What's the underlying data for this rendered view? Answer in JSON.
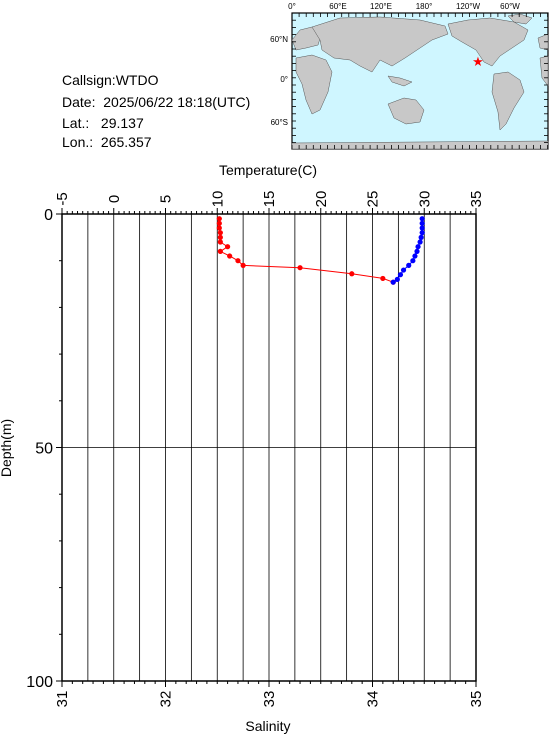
{
  "station": {
    "callsign_line": "Callsign:WTDO",
    "date_line": "Date:  2025/06/22 18:18(UTC)",
    "lat_line": "Lat.:   29.137",
    "lon_line": "Lon.:  265.357"
  },
  "map": {
    "lon_labels": [
      "0°",
      "60°E",
      "120°E",
      "180°",
      "120°W",
      "60°W"
    ],
    "lat_labels": [
      "60°N",
      "0°",
      "60°S"
    ],
    "marker": "red-star",
    "ocean_color": "#cff6ff",
    "land_color": "#c8c8c8"
  },
  "chart_data": {
    "type": "line",
    "xlabel_top": "Temperature(C)",
    "xlabel_bottom": "Salinity",
    "ylabel": "Depth(m)",
    "temperature_range": [
      -5,
      35
    ],
    "salinity_range": [
      31,
      35
    ],
    "depth_range": [
      0,
      100
    ],
    "temperature_ticks": [
      "-5",
      "0",
      "5",
      "10",
      "15",
      "20",
      "25",
      "30",
      "35"
    ],
    "salinity_ticks": [
      "31",
      "32",
      "33",
      "34",
      "35"
    ],
    "depth_ticks": [
      "0",
      "50",
      "100"
    ],
    "grid": true,
    "series": [
      {
        "color": "#ff0000",
        "axis": "temperature",
        "points": [
          [
            10.2,
            1.0
          ],
          [
            10.2,
            2.0
          ],
          [
            10.2,
            3.0
          ],
          [
            10.3,
            4.0
          ],
          [
            10.3,
            5.0
          ],
          [
            10.3,
            6.0
          ],
          [
            11.0,
            7.0
          ],
          [
            10.3,
            8.0
          ],
          [
            11.2,
            9.0
          ],
          [
            12.0,
            10.0
          ],
          [
            12.5,
            11.0
          ],
          [
            18.0,
            11.5
          ],
          [
            23.0,
            12.8
          ],
          [
            26.0,
            13.8
          ],
          [
            27.0,
            14.6
          ]
        ]
      },
      {
        "color": "#0000ff",
        "axis": "salinity",
        "points": [
          [
            34.48,
            1.0
          ],
          [
            34.48,
            2.0
          ],
          [
            34.48,
            3.0
          ],
          [
            34.48,
            4.0
          ],
          [
            34.47,
            5.0
          ],
          [
            34.46,
            6.0
          ],
          [
            34.44,
            7.0
          ],
          [
            34.43,
            8.0
          ],
          [
            34.41,
            9.0
          ],
          [
            34.39,
            10.0
          ],
          [
            34.35,
            11.0
          ],
          [
            34.3,
            12.0
          ],
          [
            34.27,
            13.0
          ],
          [
            34.24,
            14.0
          ],
          [
            34.2,
            14.6
          ]
        ]
      }
    ]
  }
}
